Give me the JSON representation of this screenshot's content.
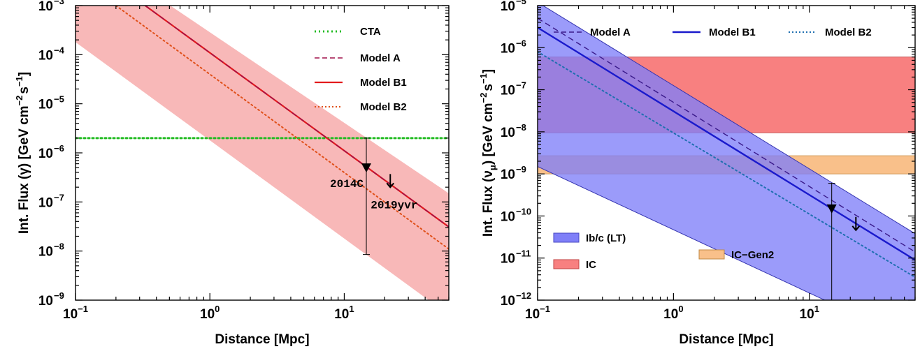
{
  "chart_data": [
    {
      "type": "line",
      "xlabel": "Distance [Mpc]",
      "ylabel": "Int. Flux (γ) [GeV cm",
      "ylabel_unit_tail": "s",
      "ylabel_exp1": "−2",
      "ylabel_exp2": "−1",
      "xscale": "log",
      "yscale": "log",
      "xlim": [
        0.1,
        60
      ],
      "ylim": [
        1e-09,
        0.001
      ],
      "x_ticks": [
        0.1,
        1,
        10
      ],
      "y_ticks": [
        1e-09,
        1e-08,
        1e-07,
        1e-06,
        1e-05,
        0.0001,
        0.001
      ],
      "legend_position": "top-right",
      "series": [
        {
          "name": "CTA",
          "style": "dotted",
          "color": "#22bb22",
          "x": [
            0.1,
            60
          ],
          "y": [
            2e-06,
            2e-06
          ]
        },
        {
          "name": "Model A",
          "style": "dashed",
          "color": "#a0104a",
          "x": [
            0.33,
            60
          ],
          "y": [
            0.001,
            3.1e-08
          ]
        },
        {
          "name": "Model B1",
          "style": "solid",
          "color": "#e31a1c",
          "x": [
            0.33,
            60
          ],
          "y": [
            0.001,
            3.1e-08
          ]
        },
        {
          "name": "Model B2",
          "style": "dotted",
          "color": "#e0501a",
          "x": [
            0.2,
            60
          ],
          "y": [
            0.001,
            1.1e-08
          ]
        }
      ],
      "band": {
        "color": "#f8b8b8",
        "lower": [
          [
            0.1,
            0.00018
          ],
          [
            60,
            5e-10
          ]
        ],
        "upper": [
          [
            0.1,
            0.02
          ],
          [
            60,
            1.5e-07
          ]
        ]
      },
      "data_points": [
        {
          "label": "2014C",
          "x": 14.6,
          "y": 5e-07,
          "y_low": 8.5e-09,
          "y_high": 2e-06,
          "marker": "down-triangle"
        },
        {
          "label": "2019yvr",
          "x": 22,
          "y": 2.5e-07,
          "marker": "upper-limit-arrow"
        }
      ]
    },
    {
      "type": "line",
      "xlabel": "Distance [Mpc]",
      "ylabel": "Int. Flux (ν",
      "ylabel_sub": "μ",
      "ylabel_mid": ") [GeV cm",
      "ylabel_unit_tail": "s",
      "ylabel_exp1": "−2",
      "ylabel_exp2": "−1",
      "xscale": "log",
      "yscale": "log",
      "xlim": [
        0.1,
        60
      ],
      "ylim": [
        1e-12,
        1e-05
      ],
      "x_ticks": [
        0.1,
        1,
        10
      ],
      "y_ticks": [
        1e-12,
        1e-11,
        1e-10,
        1e-09,
        1e-08,
        1e-07,
        1e-06,
        1e-05
      ],
      "legend_position": "top",
      "series": [
        {
          "name": "Model A",
          "style": "dashed",
          "color": "#3a1a8a",
          "x": [
            0.1,
            60
          ],
          "y": [
            5e-06,
            1.4e-11
          ]
        },
        {
          "name": "Model B1",
          "style": "solid",
          "color": "#1a1acc",
          "x": [
            0.1,
            60
          ],
          "y": [
            3e-06,
            9e-12
          ]
        },
        {
          "name": "Model B2",
          "style": "dotted",
          "color": "#1f6fb0",
          "x": [
            0.1,
            60
          ],
          "y": [
            8e-07,
            3.5e-12
          ]
        }
      ],
      "bands": [
        {
          "name": "Ib/c (LT)",
          "kind": "diagonal",
          "color": "#7f7ff8",
          "lower": [
            [
              0.1,
              1.5e-09
            ],
            [
              60,
              1e-13
            ]
          ],
          "upper": [
            [
              0.1,
              1.2e-05
            ],
            [
              60,
              3.8e-11
            ]
          ]
        },
        {
          "name": "IC",
          "kind": "horizontal",
          "color": "#f88080",
          "y_range": [
            9.5e-09,
            6e-07
          ]
        },
        {
          "name": "IC−Gen2",
          "kind": "horizontal",
          "color": "#f9c08a",
          "y_range": [
            1e-09,
            2.7e-09
          ]
        }
      ],
      "data_points": [
        {
          "x": 14.6,
          "y": 1.5e-10,
          "y_low": 1e-12,
          "y_high": 6e-10,
          "marker": "down-triangle"
        },
        {
          "x": 22,
          "y": 6e-11,
          "marker": "upper-limit-arrow"
        }
      ]
    }
  ]
}
